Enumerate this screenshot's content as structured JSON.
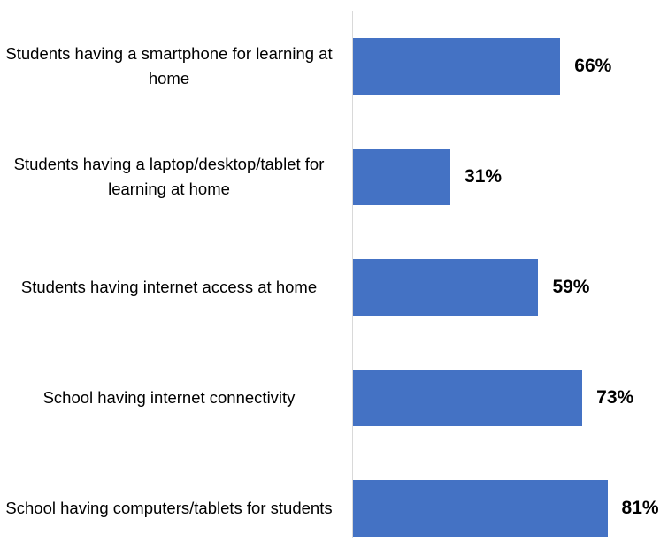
{
  "chart_data": {
    "type": "bar",
    "orientation": "horizontal",
    "categories": [
      "Students having a smartphone for learning at home",
      "Students having a laptop/desktop/tablet for learning at home",
      "Students having internet access at home",
      "School having internet connectivity",
      "School having computers/tablets for students"
    ],
    "values": [
      66,
      31,
      59,
      73,
      81
    ],
    "value_labels": [
      "66%",
      "31%",
      "59%",
      "73%",
      "81%"
    ],
    "xlim": [
      0,
      100
    ],
    "title": "",
    "xlabel": "",
    "ylabel": "",
    "grid": false,
    "legend": "none",
    "bar_color": "#4472c4"
  }
}
